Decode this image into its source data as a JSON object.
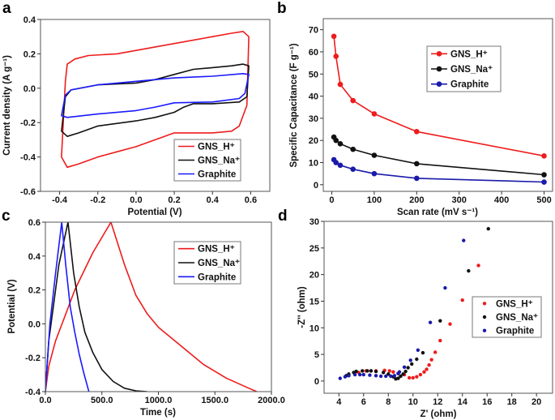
{
  "chart_data": [
    {
      "panel_label": "a",
      "type": "line",
      "xlabel": "Potential (V)",
      "ylabel": "Current density (A g⁻¹)",
      "xlim": [
        -0.5,
        0.7
      ],
      "ylim": [
        -0.6,
        0.4
      ],
      "xticks": [
        -0.4,
        -0.2,
        0.0,
        0.2,
        0.4,
        0.6
      ],
      "yticks": [
        -0.6,
        -0.4,
        -0.2,
        0.0,
        0.2,
        0.4
      ],
      "tick_decimals": 1,
      "legend_placement": "bottom-right",
      "marker": "none",
      "closed": true,
      "series": [
        {
          "name": "GNS_H⁺",
          "color": "#ee1c1c",
          "points": [
            [
              -0.37,
              0.04
            ],
            [
              -0.36,
              0.14
            ],
            [
              -0.32,
              0.17
            ],
            [
              -0.25,
              0.19
            ],
            [
              -0.1,
              0.2
            ],
            [
              0.0,
              0.22
            ],
            [
              0.2,
              0.26
            ],
            [
              0.4,
              0.3
            ],
            [
              0.5,
              0.32
            ],
            [
              0.56,
              0.33
            ],
            [
              0.59,
              0.3
            ],
            [
              0.58,
              -0.1
            ],
            [
              0.54,
              -0.22
            ],
            [
              0.5,
              -0.25
            ],
            [
              0.4,
              -0.26
            ],
            [
              0.3,
              -0.26
            ],
            [
              0.2,
              -0.26
            ],
            [
              0.1,
              -0.3
            ],
            [
              0.0,
              -0.34
            ],
            [
              -0.1,
              -0.37
            ],
            [
              -0.2,
              -0.4
            ],
            [
              -0.3,
              -0.44
            ],
            [
              -0.36,
              -0.46
            ],
            [
              -0.39,
              -0.4
            ]
          ]
        },
        {
          "name": "GNS_Na⁺",
          "color": "#111111",
          "points": [
            [
              -0.39,
              -0.25
            ],
            [
              -0.37,
              -0.05
            ],
            [
              -0.34,
              -0.01
            ],
            [
              -0.2,
              0.02
            ],
            [
              0.0,
              0.03
            ],
            [
              0.1,
              0.05
            ],
            [
              0.2,
              0.08
            ],
            [
              0.3,
              0.11
            ],
            [
              0.4,
              0.12
            ],
            [
              0.5,
              0.13
            ],
            [
              0.56,
              0.14
            ],
            [
              0.59,
              0.13
            ],
            [
              0.58,
              -0.05
            ],
            [
              0.54,
              -0.08
            ],
            [
              0.4,
              -0.09
            ],
            [
              0.3,
              -0.09
            ],
            [
              0.25,
              -0.11
            ],
            [
              0.2,
              -0.14
            ],
            [
              0.1,
              -0.17
            ],
            [
              0.0,
              -0.19
            ],
            [
              -0.2,
              -0.22
            ],
            [
              -0.3,
              -0.26
            ],
            [
              -0.36,
              -0.28
            ]
          ]
        },
        {
          "name": "Graphite",
          "color": "#1a1aff",
          "points": [
            [
              -0.39,
              -0.16
            ],
            [
              -0.37,
              -0.04
            ],
            [
              -0.34,
              -0.01
            ],
            [
              -0.2,
              0.02
            ],
            [
              0.0,
              0.04
            ],
            [
              0.2,
              0.06
            ],
            [
              0.4,
              0.07
            ],
            [
              0.56,
              0.085
            ],
            [
              0.59,
              0.08
            ],
            [
              0.57,
              -0.03
            ],
            [
              0.54,
              -0.06
            ],
            [
              0.4,
              -0.08
            ],
            [
              0.2,
              -0.085
            ],
            [
              0.1,
              -0.11
            ],
            [
              0.0,
              -0.13
            ],
            [
              -0.2,
              -0.15
            ],
            [
              -0.36,
              -0.17
            ]
          ]
        }
      ]
    },
    {
      "panel_label": "b",
      "type": "line",
      "xlabel": "Scan rate (mV s⁻¹)",
      "ylabel": "Specific Capacitance (F g⁻¹)",
      "xlim": [
        -20,
        520
      ],
      "ylim": [
        -3,
        75
      ],
      "xticks": [
        0,
        100,
        200,
        300,
        400,
        500
      ],
      "yticks": [
        0,
        10,
        20,
        30,
        40,
        50,
        60,
        70
      ],
      "tick_decimals": 0,
      "legend_placement": "top-right",
      "marker": "circle",
      "closed": false,
      "series": [
        {
          "name": "GNS_H⁺",
          "color": "#ee1c1c",
          "points": [
            [
              5,
              67
            ],
            [
              10,
              58
            ],
            [
              20,
              45.3
            ],
            [
              50,
              38
            ],
            [
              100,
              32
            ],
            [
              200,
              24
            ],
            [
              500,
              13
            ]
          ]
        },
        {
          "name": "GNS_Na⁺",
          "color": "#111111",
          "points": [
            [
              5,
              21.5
            ],
            [
              10,
              20
            ],
            [
              20,
              18.5
            ],
            [
              50,
              16
            ],
            [
              100,
              13.3
            ],
            [
              200,
              9.5
            ],
            [
              500,
              4.5
            ]
          ]
        },
        {
          "name": "Graphite",
          "color": "#1a1aaa",
          "points": [
            [
              5,
              11.3
            ],
            [
              10,
              10
            ],
            [
              20,
              8.8
            ],
            [
              50,
              7
            ],
            [
              100,
              5
            ],
            [
              200,
              2.9
            ],
            [
              500,
              1.2
            ]
          ]
        }
      ]
    },
    {
      "panel_label": "c",
      "type": "line",
      "xlabel": "Time (s)",
      "ylabel": "Potential (V)",
      "xlim": [
        0,
        2000
      ],
      "ylim": [
        -0.4,
        0.6
      ],
      "xticks": [
        0,
        500,
        1000,
        1500,
        2000
      ],
      "yticks": [
        -0.4,
        -0.2,
        0.0,
        0.2,
        0.4,
        0.6
      ],
      "tick_decimals": 1,
      "legend_placement": "top-right",
      "marker": "none",
      "closed": false,
      "series": [
        {
          "name": "GNS_H⁺",
          "color": "#ee1c1c",
          "points": [
            [
              0,
              -0.4
            ],
            [
              30,
              -0.25
            ],
            [
              90,
              -0.1
            ],
            [
              148,
              0
            ],
            [
              260,
              0.2
            ],
            [
              420,
              0.42
            ],
            [
              580,
              0.6
            ],
            [
              700,
              0.35
            ],
            [
              800,
              0.17
            ],
            [
              900,
              0.06
            ],
            [
              1000,
              -0.02
            ],
            [
              1200,
              -0.13
            ],
            [
              1400,
              -0.24
            ],
            [
              1600,
              -0.32
            ],
            [
              1800,
              -0.38
            ],
            [
              1870,
              -0.4
            ]
          ]
        },
        {
          "name": "GNS_Na⁺",
          "color": "#111111",
          "points": [
            [
              0,
              -0.4
            ],
            [
              30,
              -0.1
            ],
            [
              70,
              0.1
            ],
            [
              120,
              0.35
            ],
            [
              200,
              0.6
            ],
            [
              250,
              0.3
            ],
            [
              300,
              0.1
            ],
            [
              350,
              -0.05
            ],
            [
              420,
              -0.17
            ],
            [
              500,
              -0.27
            ],
            [
              600,
              -0.34
            ],
            [
              700,
              -0.38
            ],
            [
              800,
              -0.395
            ],
            [
              900,
              -0.4
            ]
          ]
        },
        {
          "name": "Graphite",
          "color": "#1a1aff",
          "points": [
            [
              0,
              -0.4
            ],
            [
              40,
              0
            ],
            [
              90,
              0.3
            ],
            [
              145,
              0.6
            ],
            [
              180,
              0.35
            ],
            [
              220,
              0.1
            ],
            [
              260,
              -0.05
            ],
            [
              300,
              -0.18
            ],
            [
              340,
              -0.29
            ],
            [
              385,
              -0.4
            ]
          ]
        }
      ]
    },
    {
      "panel_label": "d",
      "type": "scatter",
      "xlabel": "Z' (ohm)",
      "ylabel": "-Z'' (ohm)",
      "xlim": [
        2.8,
        21.3
      ],
      "ylim": [
        -2.3,
        30
      ],
      "xticks": [
        4,
        6,
        8,
        10,
        12,
        14,
        16,
        18,
        20
      ],
      "yticks": [
        0,
        5,
        10,
        15,
        20,
        25,
        30
      ],
      "tick_decimals": 0,
      "legend_placement": "right",
      "marker": "dot",
      "closed": false,
      "series": [
        {
          "name": "GNS_H⁺",
          "color": "#ee1c1c",
          "points": [
            [
              5.6,
              1.6
            ],
            [
              6.2,
              1.9
            ],
            [
              6.6,
              1.9
            ],
            [
              7.0,
              1.9
            ],
            [
              7.7,
              2.0
            ],
            [
              8.1,
              1.9
            ],
            [
              8.4,
              1.7
            ],
            [
              8.8,
              1.4
            ],
            [
              9.3,
              1.2
            ],
            [
              9.7,
              0.6
            ],
            [
              10.0,
              0.6
            ],
            [
              10.3,
              0.8
            ],
            [
              10.6,
              1.2
            ],
            [
              10.9,
              1.7
            ],
            [
              11.1,
              2.2
            ],
            [
              11.3,
              3
            ],
            [
              11.5,
              4
            ],
            [
              11.8,
              5.4
            ],
            [
              12.2,
              7.6
            ],
            [
              13,
              10.7
            ],
            [
              14,
              15.2
            ],
            [
              15.3,
              21.7
            ]
          ]
        },
        {
          "name": "GNS_Na⁺",
          "color": "#111111",
          "points": [
            [
              4.6,
              1.0
            ],
            [
              4.8,
              1.3
            ],
            [
              5.2,
              1.6
            ],
            [
              5.4,
              1.8
            ],
            [
              5.9,
              1.9
            ],
            [
              6.3,
              1.9
            ],
            [
              6.6,
              1.9
            ],
            [
              7.0,
              1.8
            ],
            [
              7.6,
              1.6
            ],
            [
              8.0,
              1.3
            ],
            [
              8.4,
              0.8
            ],
            [
              8.6,
              0.4
            ],
            [
              8.8,
              0.5
            ],
            [
              9.0,
              0.9
            ],
            [
              9.2,
              1.3
            ],
            [
              9.4,
              1.8
            ],
            [
              9.6,
              2.5
            ],
            [
              9.9,
              3.2
            ],
            [
              10.3,
              4.1
            ],
            [
              10.8,
              5.3
            ],
            [
              12.2,
              11.3
            ],
            [
              14.5,
              20.7
            ],
            [
              16.1,
              28.6
            ]
          ]
        },
        {
          "name": "Graphite",
          "color": "#1a1aaa",
          "points": [
            [
              4.1,
              0.5
            ],
            [
              4.5,
              0.8
            ],
            [
              4.8,
              1.0
            ],
            [
              5.3,
              1.2
            ],
            [
              5.7,
              1.2
            ],
            [
              6.0,
              1.2
            ],
            [
              6.5,
              1.1
            ],
            [
              7.0,
              1.0
            ],
            [
              7.4,
              0.9
            ],
            [
              7.8,
              0.9
            ],
            [
              8.2,
              0.9
            ],
            [
              8.5,
              1.0
            ],
            [
              8.8,
              1.4
            ],
            [
              8.9,
              1.7
            ],
            [
              9.3,
              2.6
            ],
            [
              9.8,
              3.9
            ],
            [
              10.4,
              5.8
            ],
            [
              11.4,
              11
            ],
            [
              12.6,
              17.5
            ],
            [
              14.1,
              26.4
            ]
          ]
        }
      ]
    }
  ]
}
